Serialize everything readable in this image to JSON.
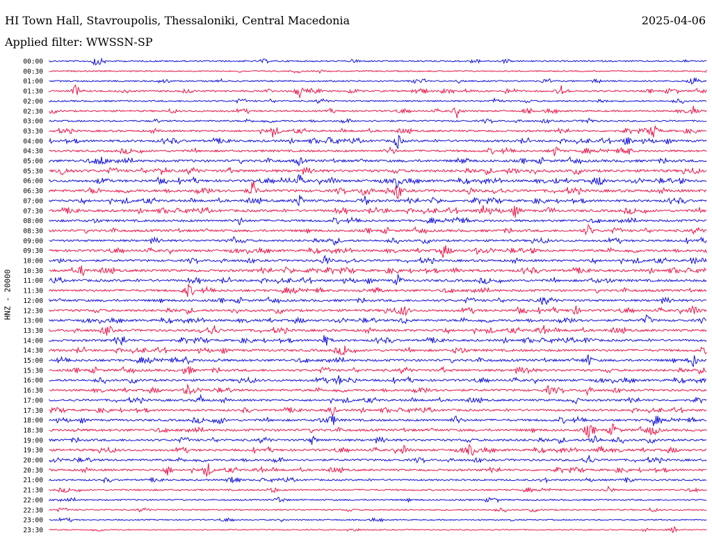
{
  "header": {
    "station": "HI Town Hall, Stavroupolis, Thessaloniki, Central Macedonia",
    "date": "2025-04-06",
    "filter": "Applied filter: WWSSN-SP"
  },
  "y_axis_label": "HNZ - 20000",
  "colors": {
    "trace_a": "#1010d8",
    "trace_b": "#e8174a",
    "text": "#000000"
  },
  "chart_data": {
    "type": "line",
    "title": "HI Town Hall, Stavroupolis, Thessaloniki, Central Macedonia",
    "ylabel": "HNZ - 20000",
    "row_labels": [
      "00:00",
      "00:30",
      "01:00",
      "01:30",
      "02:00",
      "02:30",
      "03:00",
      "03:30",
      "04:00",
      "04:30",
      "05:00",
      "05:30",
      "06:00",
      "06:30",
      "07:00",
      "07:30",
      "08:00",
      "08:30",
      "09:00",
      "09:30",
      "10:00",
      "10:30",
      "11:00",
      "11:30",
      "12:00",
      "12:30",
      "13:00",
      "13:30",
      "14:00",
      "14:30",
      "15:00",
      "15:30",
      "16:00",
      "16:30",
      "17:00",
      "17:30",
      "18:00",
      "18:30",
      "19:00",
      "19:30",
      "20:00",
      "20:30",
      "21:00",
      "21:30",
      "22:00",
      "22:30",
      "23:00",
      "23:30"
    ],
    "series_colors_alternating": [
      "#1010d8",
      "#e8174a"
    ],
    "activity_level": [
      0.25,
      0.15,
      0.25,
      0.35,
      0.3,
      0.35,
      0.3,
      0.45,
      0.55,
      0.5,
      0.65,
      0.7,
      0.65,
      0.7,
      0.6,
      0.65,
      0.55,
      0.6,
      0.5,
      0.6,
      0.55,
      0.65,
      0.6,
      0.6,
      0.55,
      0.6,
      0.55,
      0.6,
      0.55,
      0.6,
      0.6,
      0.6,
      0.55,
      0.55,
      0.5,
      0.5,
      0.55,
      0.6,
      0.55,
      0.55,
      0.5,
      0.5,
      0.35,
      0.3,
      0.25,
      0.2,
      0.15,
      0.1
    ],
    "events": [
      [
        [
          0.07,
          0.7
        ]
      ],
      [],
      [
        [
          0.98,
          0.9
        ]
      ],
      [
        [
          0.04,
          0.9
        ],
        [
          0.38,
          1
        ],
        [
          0.56,
          0.8
        ],
        [
          0.78,
          0.9
        ]
      ],
      [
        [
          0.68,
          0.5
        ]
      ],
      [
        [
          0.62,
          0.7
        ],
        [
          0.98,
          0.6
        ]
      ],
      [
        [
          0.82,
          0.5
        ]
      ],
      [
        [
          0.34,
          0.6
        ],
        [
          0.92,
          1
        ]
      ],
      [
        [
          0.43,
          0.7
        ],
        [
          0.53,
          1
        ],
        [
          0.88,
          0.8
        ]
      ],
      [
        [
          0.52,
          0.6
        ],
        [
          0.77,
          0.8
        ],
        [
          0.88,
          0.7
        ]
      ],
      [
        [
          0.08,
          0.8
        ],
        [
          0.38,
          0.6
        ]
      ],
      [
        [
          0.02,
          0.9
        ],
        [
          0.17,
          0.6
        ]
      ],
      [
        [
          0.38,
          0.7
        ],
        [
          0.43,
          0.6
        ],
        [
          0.53,
          0.6
        ],
        [
          0.84,
          0.6
        ]
      ],
      [
        [
          0.31,
          1
        ],
        [
          0.48,
          0.9
        ],
        [
          0.53,
          0.9
        ],
        [
          0.64,
          0.6
        ]
      ],
      [
        [
          0.38,
          0.9
        ],
        [
          0.48,
          0.8
        ]
      ],
      [
        [
          0.66,
          0.9
        ],
        [
          0.71,
          0.6
        ]
      ],
      [
        [
          0.29,
          0.5
        ],
        [
          0.62,
          0.4
        ]
      ],
      [
        [
          0.82,
          0.9
        ]
      ],
      [
        [
          0.28,
          0.5
        ],
        [
          0.43,
          0.4
        ]
      ],
      [
        [
          0.6,
          0.7
        ],
        [
          0.65,
          0.4
        ]
      ],
      [
        [
          0.42,
          0.9
        ],
        [
          0.98,
          0.6
        ]
      ],
      [
        [
          0.05,
          0.8
        ],
        [
          0.4,
          1
        ],
        [
          0.62,
          0.5
        ]
      ],
      [
        [
          0.53,
          0.8
        ],
        [
          0.83,
          0.5
        ]
      ],
      [
        [
          0.21,
          0.8
        ],
        [
          0.5,
          0.5
        ]
      ],
      [
        [
          0.75,
          0.5
        ]
      ],
      [
        [
          0.54,
          0.8
        ],
        [
          0.8,
          0.7
        ],
        [
          0.98,
          1
        ]
      ],
      [
        [
          0.54,
          0.6
        ],
        [
          0.91,
          0.8
        ]
      ],
      [
        [
          0.09,
          0.7
        ],
        [
          0.25,
          0.9
        ],
        [
          0.75,
          1
        ]
      ],
      [
        [
          0.11,
          0.7
        ],
        [
          0.42,
          0.9
        ],
        [
          0.82,
          0.6
        ]
      ],
      [
        [
          0.45,
          0.6
        ],
        [
          0.62,
          0.4
        ]
      ],
      [
        [
          0.21,
          0.6
        ],
        [
          0.82,
          0.8
        ],
        [
          0.98,
          1
        ]
      ],
      [
        [
          0.21,
          1
        ],
        [
          0.73,
          0.5
        ]
      ],
      [
        [
          0.44,
          0.7
        ],
        [
          0.46,
          0.6
        ]
      ],
      [
        [
          0.21,
          0.8
        ],
        [
          0.76,
          0.6
        ],
        [
          0.82,
          0.6
        ]
      ],
      [
        [
          0.23,
          0.6
        ],
        [
          0.8,
          0.5
        ]
      ],
      [
        [
          0.43,
          0.8
        ]
      ],
      [
        [
          0.26,
          0.6
        ],
        [
          0.43,
          1
        ],
        [
          0.62,
          0.7
        ],
        [
          0.92,
          0.6
        ]
      ],
      [
        [
          0.82,
          1
        ],
        [
          0.86,
          0.8
        ],
        [
          0.92,
          0.8
        ]
      ],
      [
        [
          0.4,
          0.6
        ],
        [
          0.83,
          0.9
        ]
      ],
      [
        [
          0.54,
          0.7
        ],
        [
          0.64,
          0.8
        ],
        [
          0.84,
          0.7
        ]
      ],
      [
        [
          0.82,
          0.9
        ]
      ],
      [
        [
          0.18,
          0.8
        ],
        [
          0.24,
          0.9
        ],
        [
          0.32,
          0.5
        ]
      ],
      [
        [
          0.28,
          0.5
        ],
        [
          0.88,
          0.5
        ]
      ],
      [
        [
          0.34,
          0.5
        ],
        [
          0.85,
          0.6
        ]
      ],
      [
        [
          0.35,
          0.6
        ]
      ],
      [],
      [],
      [
        [
          0.95,
          0.5
        ]
      ]
    ]
  }
}
